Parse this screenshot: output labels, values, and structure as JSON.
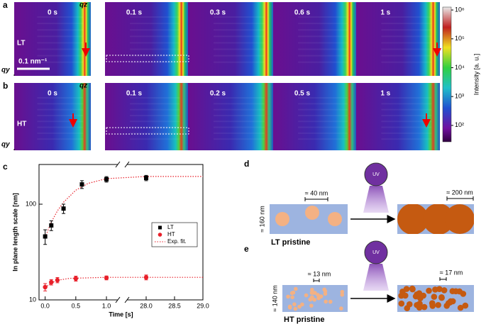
{
  "panel_labels": [
    "a",
    "b",
    "c",
    "d",
    "e"
  ],
  "heatmaps": {
    "rows": [
      {
        "label": "LT",
        "qz": "qz",
        "qy": "qy",
        "times": [
          "0 s",
          "0.1 s",
          "0.3 s",
          "0.6 s",
          "1 s"
        ]
      },
      {
        "label": "HT",
        "qz": "qz",
        "qy": "qy",
        "times": [
          "0 s",
          "0.1 s",
          "0.2 s",
          "0.5 s",
          "1 s"
        ]
      }
    ],
    "scale_bar": "0.1 nm⁻¹",
    "colorbar": {
      "label": "Intensity [a. u.]",
      "clim": [
        27,
        1260000
      ],
      "log": true,
      "ticks": [
        {
          "value": 100,
          "label": "10²"
        },
        {
          "value": 1000,
          "label": "10³"
        },
        {
          "value": 10000,
          "label": "10⁴"
        },
        {
          "value": 100000,
          "label": "10⁵"
        },
        {
          "value": 1000000,
          "label": "10⁶"
        }
      ]
    }
  },
  "chart_data": {
    "type": "scatter",
    "xlabel": "Time [s]",
    "ylabel": "In plane length scale [nm]",
    "log_y": true,
    "ylim": [
      10,
      260
    ],
    "yticks": [
      10,
      100
    ],
    "xlim": [
      -0.1,
      29.0
    ],
    "x_break": [
      1.15,
      27.7
    ],
    "xticks": [
      {
        "value": 0,
        "label": "0.0"
      },
      {
        "value": 0.5,
        "label": "0.5"
      },
      {
        "value": 1,
        "label": "1.0"
      },
      {
        "value": 28,
        "label": "28.0"
      },
      {
        "value": 28.5,
        "label": "28.5"
      },
      {
        "value": 29,
        "label": "29.0"
      }
    ],
    "legend": "right",
    "series": [
      {
        "name": "LT",
        "color": "#000000",
        "marker": "square",
        "x": [
          0,
          0.1,
          0.3,
          0.6,
          1.0,
          28
        ],
        "values": [
          46,
          60,
          90,
          161,
          182,
          188
        ],
        "errors": [
          8,
          7,
          10,
          15,
          12,
          12
        ]
      },
      {
        "name": "HT",
        "color": "#e8202a",
        "marker": "circle",
        "x": [
          0,
          0.1,
          0.2,
          0.5,
          1.0,
          28
        ],
        "values": [
          13.6,
          15.3,
          16.1,
          16.7,
          17.0,
          17.2
        ],
        "errors": [
          1.2,
          1,
          1,
          1,
          0.8,
          1
        ]
      }
    ],
    "fits": {
      "name": "Exp. fit.",
      "color": "#e8202a",
      "lines": [
        {
          "x": [
            0,
            0.1,
            0.2,
            0.3,
            0.5,
            0.7,
            1.0,
            28,
            29
          ],
          "values": [
            45,
            65,
            85,
            105,
            140,
            165,
            185,
            195,
            195
          ]
        },
        {
          "x": [
            0,
            0.1,
            0.2,
            0.4,
            1.0,
            28,
            29
          ],
          "values": [
            13.5,
            15,
            16,
            16.8,
            17.2,
            17.2,
            17.2
          ]
        }
      ]
    }
  },
  "diagrams": {
    "d": {
      "size_before": "≈ 40 nm",
      "size_after": "≈ 200 nm",
      "height": "≈ 160 nm",
      "state": "LT pristine",
      "uv": "UV"
    },
    "e": {
      "size_before": "≈ 13 nm",
      "size_after": "≈ 17 nm",
      "height": "≈ 140 nm",
      "state": "HT pristine",
      "uv": "UV"
    }
  }
}
